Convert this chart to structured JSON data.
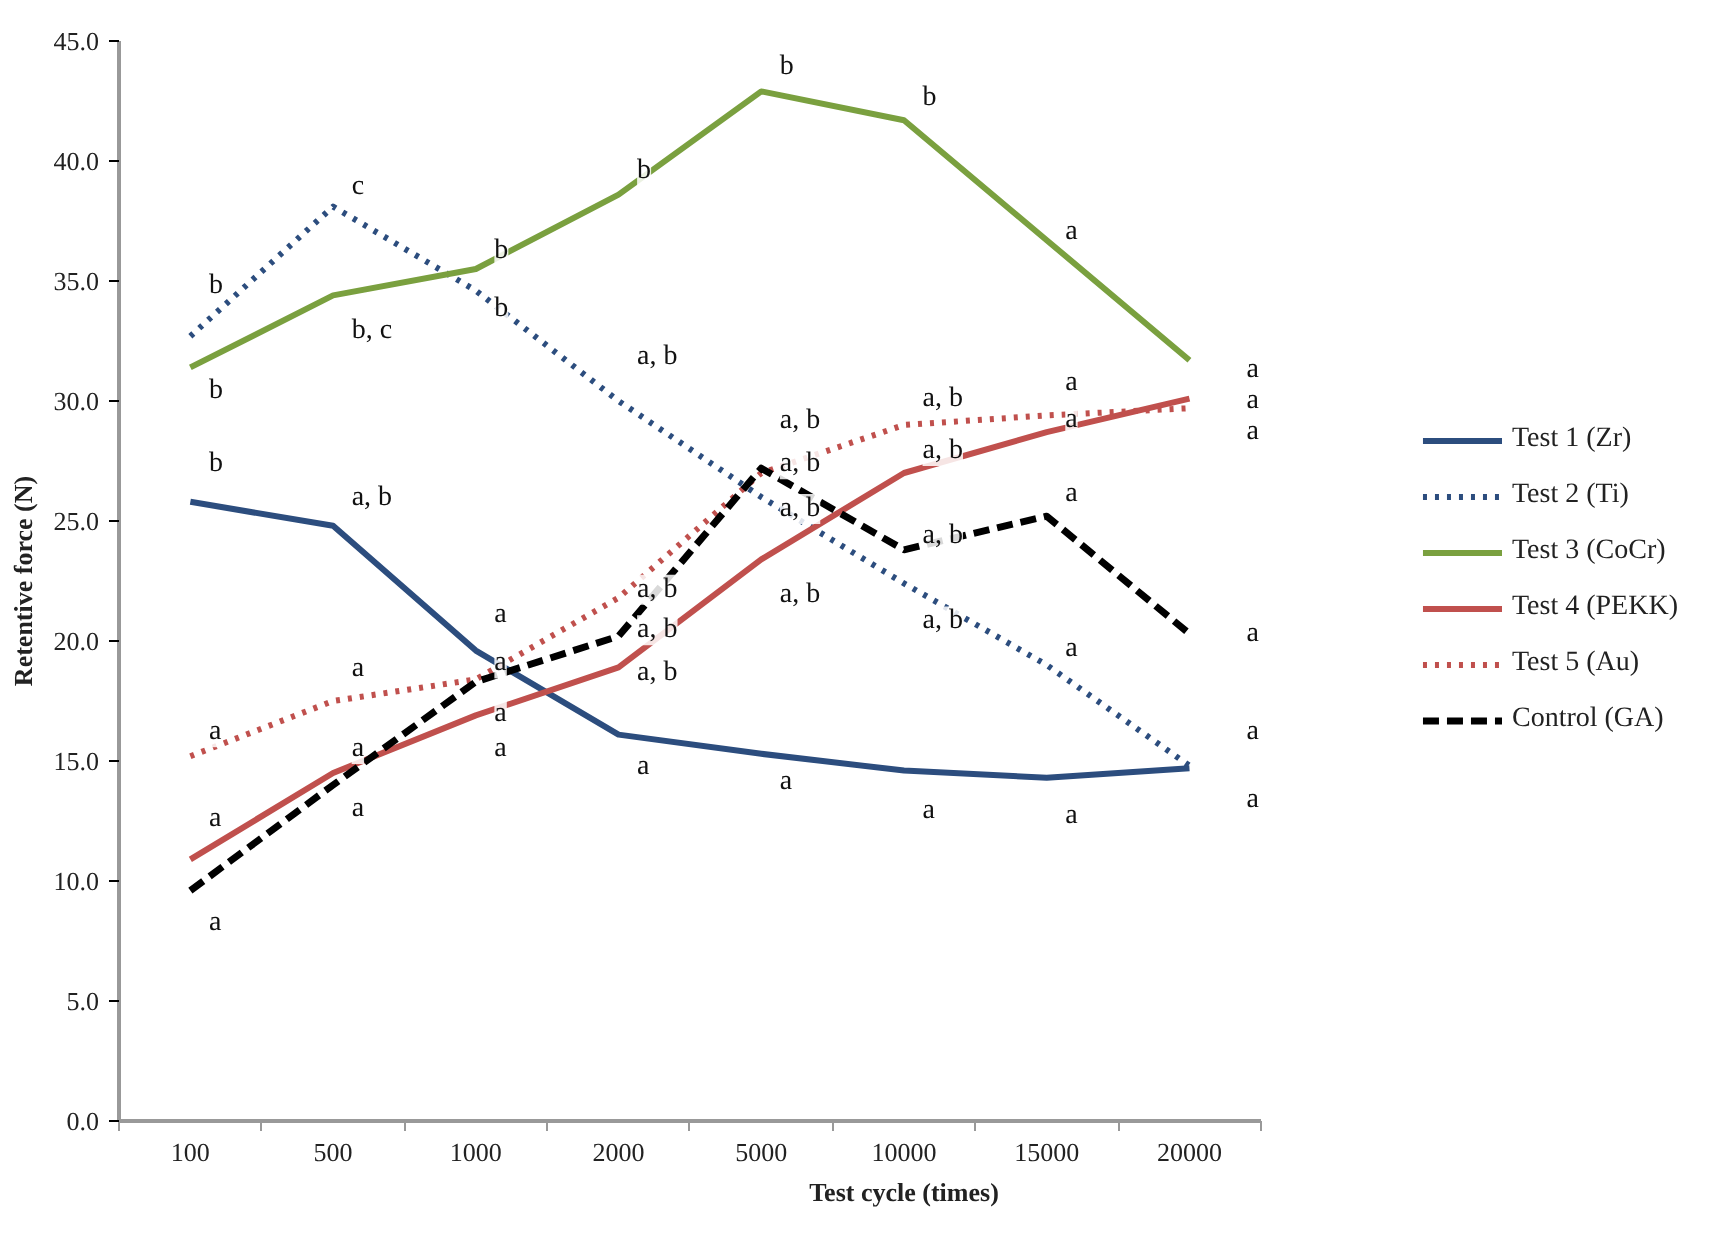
{
  "chart_data": {
    "type": "line",
    "xlabel": "Test cycle (times)",
    "ylabel": "Retentive force (N)",
    "categories": [
      "100",
      "500",
      "1000",
      "2000",
      "5000",
      "10000",
      "15000",
      "20000"
    ],
    "ylim": [
      0,
      45
    ],
    "yticks": [
      {
        "value": 0,
        "label": "0.0"
      },
      {
        "value": 5,
        "label": "5.0"
      },
      {
        "value": 10,
        "label": "10.0"
      },
      {
        "value": 15,
        "label": "15.0"
      },
      {
        "value": 20,
        "label": "20.0"
      },
      {
        "value": 25,
        "label": "25.0"
      },
      {
        "value": 30,
        "label": "30.0"
      },
      {
        "value": 35,
        "label": "35.0"
      },
      {
        "value": 40,
        "label": "40.0"
      },
      {
        "value": 45,
        "label": "45.0"
      }
    ],
    "grid": false,
    "legend": "right",
    "marker": "none",
    "series": [
      {
        "name": "Test 1 (Zr)",
        "color": "#2c4d7e",
        "line_style": "solid",
        "values": [
          25.8,
          24.8,
          19.6,
          16.1,
          15.3,
          14.6,
          14.3,
          14.7
        ]
      },
      {
        "name": "Test 2 (Ti)",
        "color": "#2c4d7e",
        "line_style": "dotted",
        "values": [
          32.7,
          38.1,
          34.6,
          30.0,
          26.0,
          22.4,
          19.0,
          14.8
        ]
      },
      {
        "name": "Test 3 (CoCr)",
        "color": "#7aa03f",
        "line_style": "solid",
        "values": [
          31.4,
          34.4,
          35.5,
          38.6,
          42.9,
          41.7,
          36.7,
          31.7
        ]
      },
      {
        "name": "Test 4 (PEKK)",
        "color": "#c0504d",
        "line_style": "solid",
        "values": [
          10.9,
          14.5,
          16.9,
          18.9,
          23.4,
          27.0,
          28.7,
          30.1
        ]
      },
      {
        "name": "Test 5 (Au)",
        "color": "#c0504d",
        "line_style": "dotted",
        "values": [
          15.2,
          17.5,
          18.4,
          21.8,
          27.0,
          29.0,
          29.4,
          29.7
        ]
      },
      {
        "name": "Control (GA)",
        "color": "#000000",
        "line_style": "dashed",
        "values": [
          9.6,
          14.0,
          18.3,
          20.2,
          27.2,
          23.8,
          25.2,
          20.3
        ]
      }
    ],
    "annotations": [
      {
        "text": "b",
        "x": "100",
        "y": 32.7
      },
      {
        "text": "b",
        "x": "100",
        "y": 31.4
      },
      {
        "text": "b",
        "x": "100",
        "y": 25.8
      },
      {
        "text": "a",
        "x": "100",
        "y": 15.2
      },
      {
        "text": "a",
        "x": "100",
        "y": 10.9
      },
      {
        "text": "a",
        "x": "100",
        "y": 9.6
      },
      {
        "text": "c",
        "x": "500",
        "y": 38.1
      },
      {
        "text": "b, c",
        "x": "500",
        "y": 34.4
      },
      {
        "text": "a, b",
        "x": "500",
        "y": 24.8
      },
      {
        "text": "a",
        "x": "500",
        "y": 17.5
      },
      {
        "text": "a",
        "x": "500",
        "y": 14.5
      },
      {
        "text": "a",
        "x": "500",
        "y": 14.0
      },
      {
        "text": "b",
        "x": "1000",
        "y": 35.5
      },
      {
        "text": "b",
        "x": "1000",
        "y": 34.6
      },
      {
        "text": "a",
        "x": "1000",
        "y": 19.6
      },
      {
        "text": "a",
        "x": "1000",
        "y": 18.4
      },
      {
        "text": "a",
        "x": "1000",
        "y": 18.3
      },
      {
        "text": "a",
        "x": "1000",
        "y": 16.9
      },
      {
        "text": "b",
        "x": "2000",
        "y": 38.6
      },
      {
        "text": "a, b",
        "x": "2000",
        "y": 30.0
      },
      {
        "text": "a, b",
        "x": "2000",
        "y": 21.8
      },
      {
        "text": "a, b",
        "x": "2000",
        "y": 20.2
      },
      {
        "text": "a, b",
        "x": "2000",
        "y": 18.9
      },
      {
        "text": "a",
        "x": "2000",
        "y": 16.1
      },
      {
        "text": "b",
        "x": "5000",
        "y": 42.9
      },
      {
        "text": "a, b",
        "x": "5000",
        "y": 27.0
      },
      {
        "text": "a, b",
        "x": "5000",
        "y": 27.2
      },
      {
        "text": "a, b",
        "x": "5000",
        "y": 26.0
      },
      {
        "text": "a, b",
        "x": "5000",
        "y": 23.4
      },
      {
        "text": "a",
        "x": "5000",
        "y": 15.3
      },
      {
        "text": "b",
        "x": "10000",
        "y": 41.7
      },
      {
        "text": "a, b",
        "x": "10000",
        "y": 29.0
      },
      {
        "text": "a, b",
        "x": "10000",
        "y": 27.0
      },
      {
        "text": "a, b",
        "x": "10000",
        "y": 23.8
      },
      {
        "text": "a, b",
        "x": "10000",
        "y": 22.4
      },
      {
        "text": "a",
        "x": "10000",
        "y": 14.6
      },
      {
        "text": "a",
        "x": "15000",
        "y": 36.7
      },
      {
        "text": "a",
        "x": "15000",
        "y": 29.4
      },
      {
        "text": "a",
        "x": "15000",
        "y": 28.7
      },
      {
        "text": "a",
        "x": "15000",
        "y": 25.2
      },
      {
        "text": "a",
        "x": "15000",
        "y": 19.0
      },
      {
        "text": "a",
        "x": "15000",
        "y": 14.3
      },
      {
        "text": "a",
        "x": "20000",
        "y": 31.7
      },
      {
        "text": "a",
        "x": "20000",
        "y": 30.1
      },
      {
        "text": "a",
        "x": "20000",
        "y": 29.7
      },
      {
        "text": "a",
        "x": "20000",
        "y": 20.3
      },
      {
        "text": "a",
        "x": "20000",
        "y": 14.8
      },
      {
        "text": "a",
        "x": "20000",
        "y": 14.7
      }
    ]
  }
}
